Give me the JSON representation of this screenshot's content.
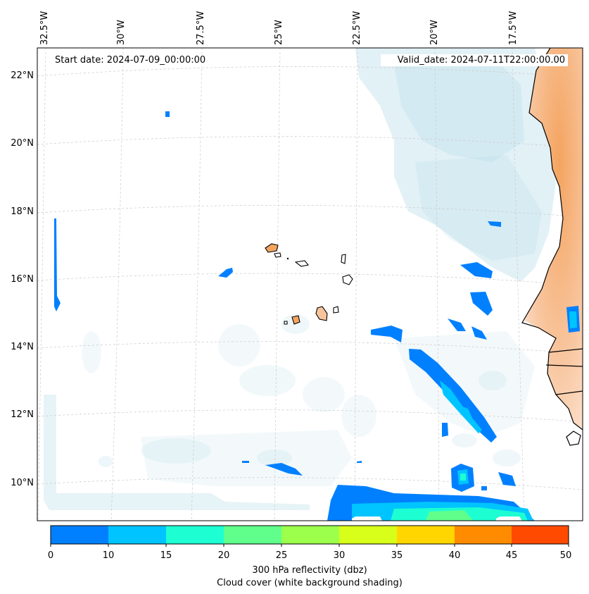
{
  "header": {
    "start_date": "Start date: 2024-07-09_00:00:00",
    "valid_date": "Valid_date: 2024-07-11T22:00:00.00"
  },
  "map": {
    "region": "Eastern tropical Atlantic / West Africa coast (Cabo Verde)",
    "longitude_labels": [
      "32.5°W",
      "30°W",
      "27.5°W",
      "25°W",
      "22.5°W",
      "20°W",
      "17.5°W"
    ],
    "latitude_labels": [
      "22°N",
      "20°N",
      "18°N",
      "16°N",
      "14°N",
      "12°N",
      "10°N"
    ],
    "land_color": "#f4a460",
    "cloud_color": "#add8e6",
    "gridlines": true
  },
  "colorbar": {
    "ticks": [
      "0",
      "10",
      "15",
      "20",
      "25",
      "30",
      "35",
      "40",
      "45",
      "50"
    ],
    "colors": [
      "#0080ff",
      "#00c4ff",
      "#1dffd2",
      "#60ff8c",
      "#9cff4c",
      "#d8ff1a",
      "#ffd600",
      "#ff8c00",
      "#ff4a00"
    ],
    "label": "300 hPa reflectivity (dbz)",
    "sublabel": "Cloud cover (white background shading)"
  }
}
